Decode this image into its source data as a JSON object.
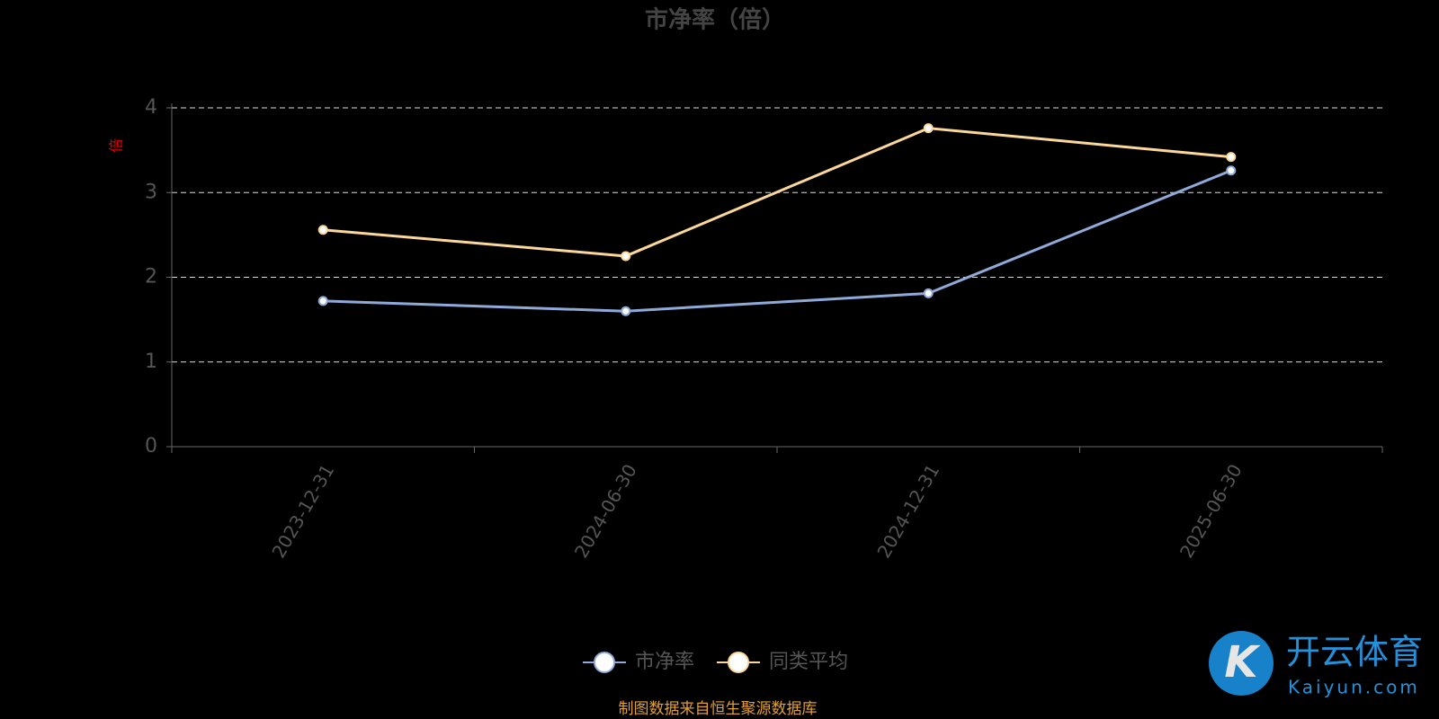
{
  "chart_data": {
    "type": "line",
    "title": "市净率（倍）",
    "y_label": "倍",
    "categories": [
      "2023-12-31",
      "2024-06-30",
      "2024-12-31",
      "2025-06-30"
    ],
    "series": [
      {
        "name": "市净率",
        "color": "#8fa9d8",
        "values": [
          1.72,
          1.6,
          1.81,
          3.26
        ]
      },
      {
        "name": "同类平均",
        "color": "#fbd79a",
        "values": [
          2.56,
          2.25,
          3.76,
          3.42
        ]
      }
    ],
    "ylim": [
      0,
      4
    ],
    "yticks": [
      0,
      1,
      2,
      3,
      4
    ],
    "grid": true,
    "legend": "bottom",
    "source": "制图数据来自恒生聚源数据库"
  },
  "watermark": {
    "brand": "开云体育",
    "site": "Kaiyun.com"
  }
}
